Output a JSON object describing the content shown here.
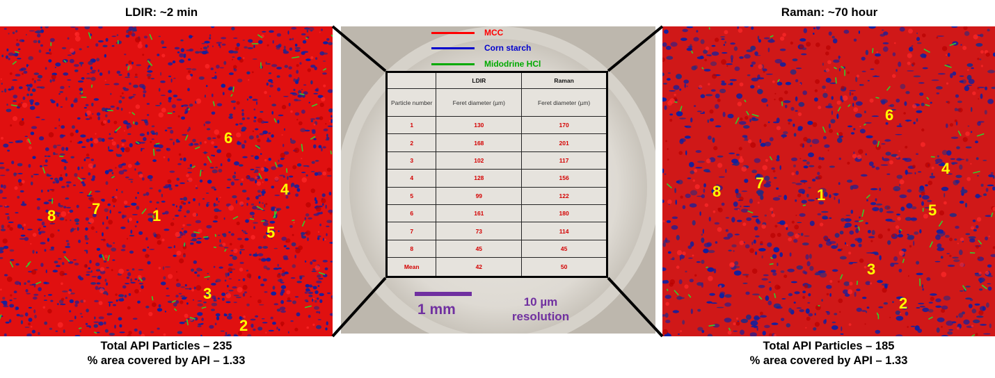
{
  "left_panel": {
    "title": "LDIR: ~2 min",
    "footer_line1": "Total API Particles – 235",
    "footer_line2": "% area covered by API – 1.33",
    "labels": [
      {
        "text": "6"
      },
      {
        "text": "4"
      },
      {
        "text": "8"
      },
      {
        "text": "7"
      },
      {
        "text": "1"
      },
      {
        "text": "5"
      },
      {
        "text": "3"
      },
      {
        "text": "2"
      }
    ]
  },
  "right_panel": {
    "title": "Raman: ~70 hour",
    "footer_line1": "Total API Particles – 185",
    "footer_line2": "% area covered by API – 1.33",
    "labels": [
      {
        "text": "6"
      },
      {
        "text": "4"
      },
      {
        "text": "8"
      },
      {
        "text": "7"
      },
      {
        "text": "1"
      },
      {
        "text": "5"
      },
      {
        "text": "3"
      },
      {
        "text": "2"
      }
    ]
  },
  "legend": [
    {
      "label": "MCC",
      "color": "#ff0000"
    },
    {
      "label": "Corn starch",
      "color": "#0000cc"
    },
    {
      "label": "Midodrine HCl",
      "color": "#00aa00"
    }
  ],
  "table": {
    "col_headers": [
      "",
      "LDIR",
      "Raman"
    ],
    "sub_headers": [
      "Particle number",
      "Feret diameter (µm)",
      "Feret diameter (µm)"
    ],
    "rows": [
      [
        "1",
        "130",
        "170"
      ],
      [
        "2",
        "168",
        "201"
      ],
      [
        "3",
        "102",
        "117"
      ],
      [
        "4",
        "128",
        "156"
      ],
      [
        "5",
        "99",
        "122"
      ],
      [
        "6",
        "161",
        "180"
      ],
      [
        "7",
        "73",
        "114"
      ],
      [
        "8",
        "45",
        "45"
      ],
      [
        "Mean",
        "42",
        "50"
      ]
    ]
  },
  "scale": {
    "bar_label": "1 mm",
    "resolution_line1": "10 µm",
    "resolution_line2": "resolution",
    "color": "#7030a0"
  },
  "colors": {
    "mcc": "#e01010",
    "starch": "#1020a0",
    "api": "#30d030",
    "label": "#ffff00"
  }
}
